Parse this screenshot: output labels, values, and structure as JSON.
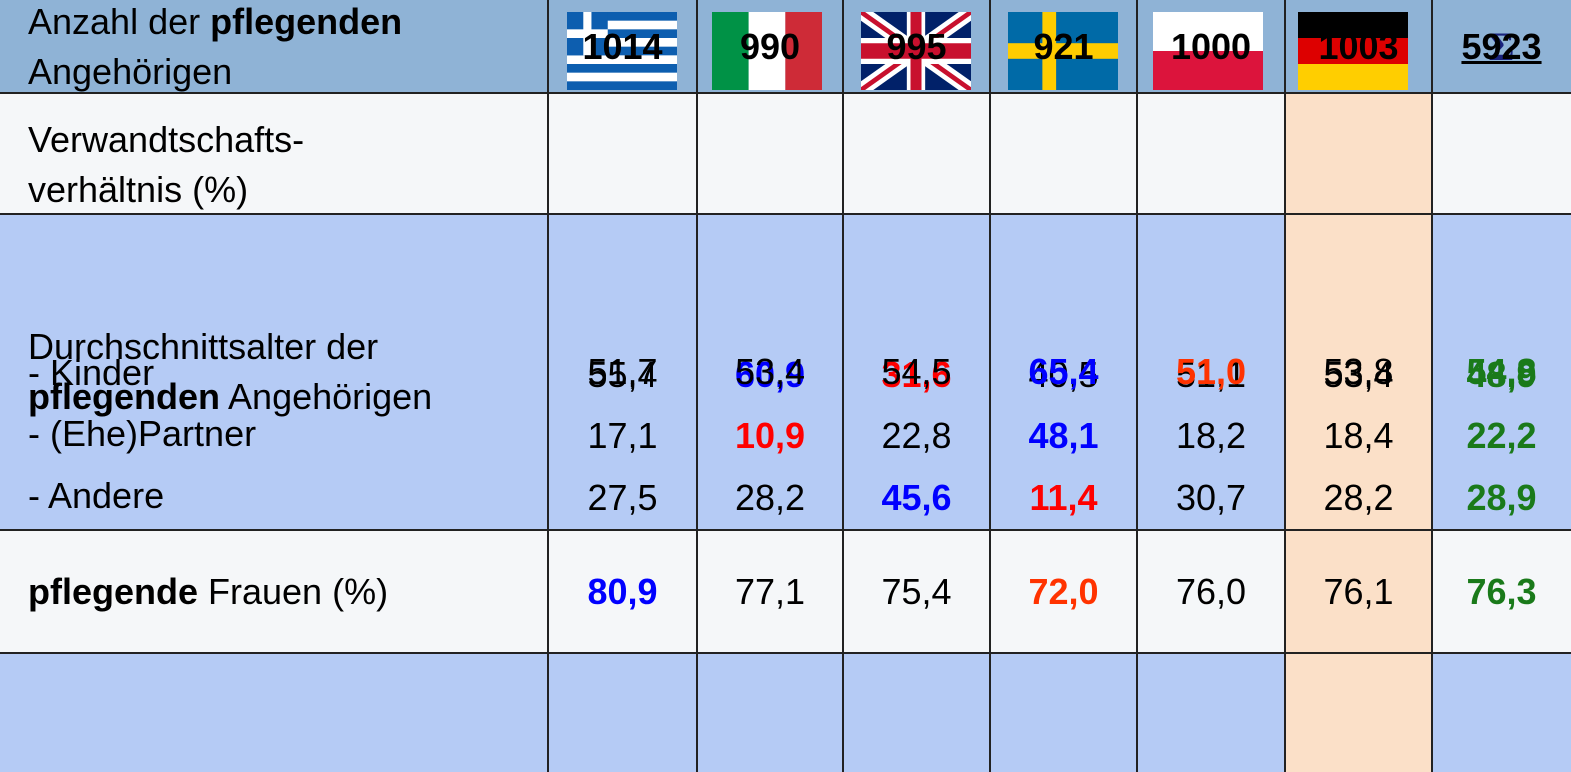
{
  "header": {
    "sum_symbol": "Σ"
  },
  "rows": [
    {
      "label": [
        [
          {
            "text": "Anzahl der "
          },
          {
            "text": "pflegenden",
            "bold": true
          }
        ],
        [
          {
            "text": "Angehörigen"
          }
        ]
      ],
      "cells": [
        {
          "text": "1014",
          "bold": true
        },
        {
          "text": "990",
          "bold": true
        },
        {
          "text": "995",
          "bold": true
        },
        {
          "text": "921",
          "bold": true
        },
        {
          "text": "1000",
          "bold": true
        },
        {
          "text": "1003",
          "bold": true
        },
        {
          "text": "5923",
          "bold": true,
          "underline": true
        }
      ]
    },
    {
      "label": [
        [
          {
            "text": "Verwandtschafts-"
          }
        ],
        [
          {
            "text": "verhältnis (%)"
          }
        ]
      ],
      "subrows": [
        {
          "label": "- Kinder",
          "cells": [
            {
              "text": "55,4"
            },
            {
              "text": "60,9",
              "bold": true,
              "color": "#0000ff"
            },
            {
              "text": "31,6",
              "bold": true,
              "color": "#ff0000"
            },
            {
              "text": "40,5"
            },
            {
              "text": "51,1"
            },
            {
              "text": "53,4"
            },
            {
              "text": "48,9",
              "bold": true,
              "color": "#1a7a1a"
            }
          ]
        },
        {
          "label": "- (Ehe)Partner",
          "cells": [
            {
              "text": "17,1"
            },
            {
              "text": "10,9",
              "bold": true,
              "color": "#ff0000"
            },
            {
              "text": "22,8"
            },
            {
              "text": "48,1",
              "bold": true,
              "color": "#0000ff"
            },
            {
              "text": "18,2"
            },
            {
              "text": "18,4"
            },
            {
              "text": "22,2",
              "bold": true,
              "color": "#1a7a1a"
            }
          ]
        },
        {
          "label": "- Andere",
          "cells": [
            {
              "text": "27,5"
            },
            {
              "text": "28,2"
            },
            {
              "text": "45,6",
              "bold": true,
              "color": "#0000ff"
            },
            {
              "text": "11,4",
              "bold": true,
              "color": "#ff0000"
            },
            {
              "text": "30,7"
            },
            {
              "text": "28,2"
            },
            {
              "text": "28,9",
              "bold": true,
              "color": "#1a7a1a"
            }
          ]
        }
      ]
    },
    {
      "label": [
        [
          {
            "text": "Durchschnittsalter der"
          }
        ],
        [
          {
            "text": "pflegenden",
            "bold": true
          },
          {
            "text": " Angehörigen"
          }
        ]
      ],
      "cells": [
        {
          "text": "51,7"
        },
        {
          "text": "53,4"
        },
        {
          "text": "54,5"
        },
        {
          "text": "65,4",
          "bold": true,
          "color": "#0000ff"
        },
        {
          "text": "51,0",
          "bold": true,
          "color": "#ff3300"
        },
        {
          "text": "53,8"
        },
        {
          "text": "54,8",
          "bold": true,
          "color": "#1a7a1a"
        }
      ]
    },
    {
      "label": [
        [
          {
            "text": "pflegende",
            "bold": true
          },
          {
            "text": " Frauen (%)"
          }
        ]
      ],
      "cells": [
        {
          "text": "80,9",
          "bold": true,
          "color": "#0000ff"
        },
        {
          "text": "77,1"
        },
        {
          "text": "75,4"
        },
        {
          "text": "72,0",
          "bold": true,
          "color": "#ff3300"
        },
        {
          "text": "76,0"
        },
        {
          "text": "76,1"
        },
        {
          "text": "76,3",
          "bold": true,
          "color": "#1a7a1a"
        }
      ]
    }
  ]
}
